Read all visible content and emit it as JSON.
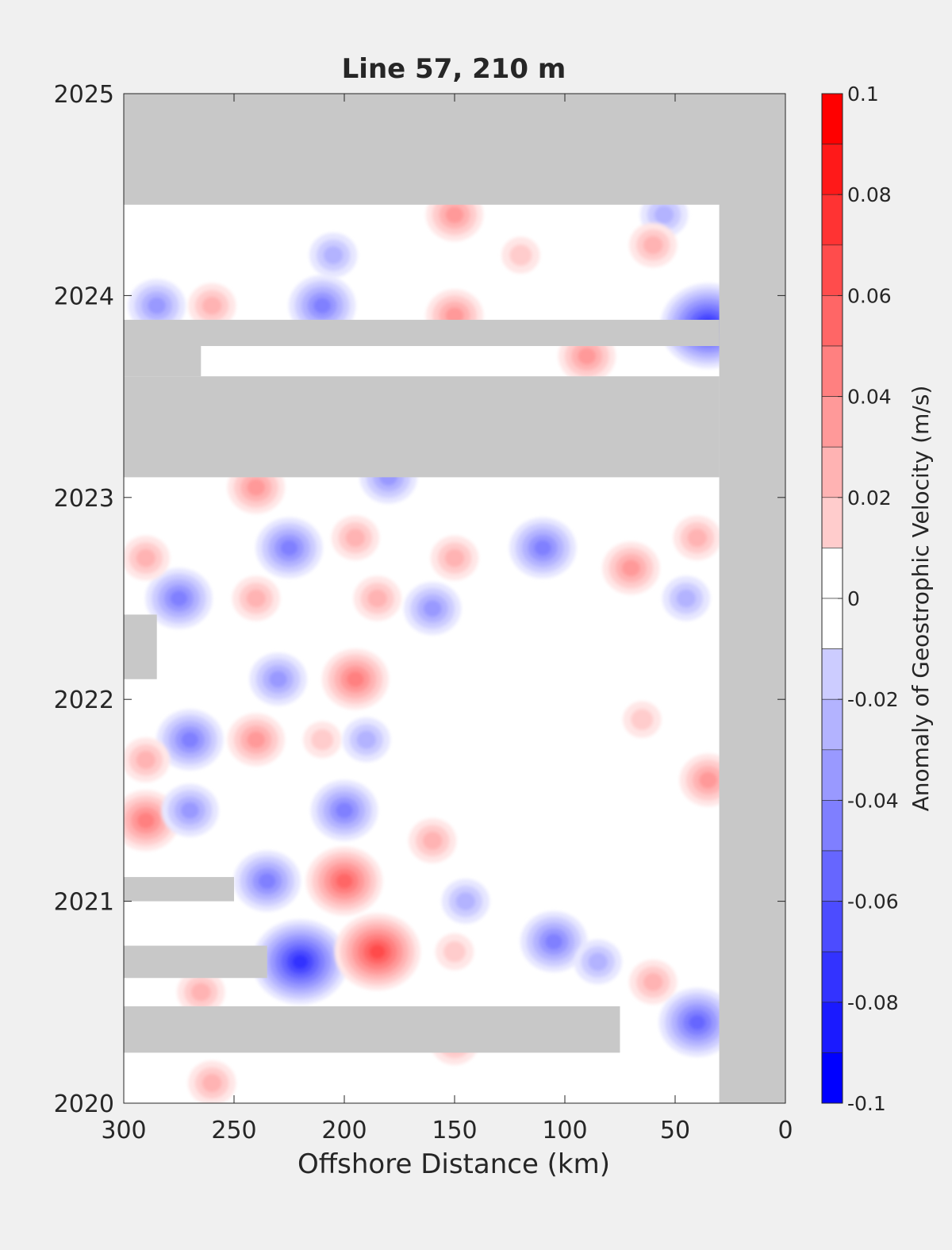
{
  "chart_data": {
    "type": "heatmap",
    "title": "Line 57, 210 m",
    "xlabel": "Offshore Distance (km)",
    "ylabel": "",
    "xlim": [
      300,
      0
    ],
    "ylim": [
      2020,
      2025
    ],
    "xticks": [
      "300",
      "250",
      "200",
      "150",
      "100",
      "50",
      "0"
    ],
    "yticks": [
      "2025",
      "2024",
      "2023",
      "2022",
      "2021",
      "2020"
    ],
    "colorbar": {
      "label": "Anomaly of Geostrophic Velocity (m/s)",
      "range": [
        -0.1,
        0.1
      ],
      "levels": 20,
      "tick_labels": [
        "0.1",
        "0.08",
        "0.06",
        "0.04",
        "0.02",
        "0",
        "-0.02",
        "-0.04",
        "-0.06",
        "-0.08",
        "-0.1"
      ],
      "colors": {
        "negative_max": "#0000ff",
        "zero": "#ffffff",
        "positive_max": "#ff0000",
        "missing": "#c8c8c8"
      }
    },
    "grid": false,
    "data_coverage": {
      "x_range": [
        300,
        30
      ],
      "y_range": [
        2020.05,
        2024.45
      ]
    },
    "missing_bands": [
      {
        "x": [
          300,
          0
        ],
        "y": [
          2024.45,
          2025.0
        ]
      },
      {
        "x": [
          30,
          0
        ],
        "y": [
          2020.0,
          2025.0
        ]
      },
      {
        "x": [
          300,
          30
        ],
        "y": [
          2023.1,
          2023.6
        ]
      },
      {
        "x": [
          300,
          30
        ],
        "y": [
          2023.75,
          2023.88
        ]
      },
      {
        "x": [
          300,
          265
        ],
        "y": [
          2023.6,
          2023.75
        ]
      },
      {
        "x": [
          300,
          285
        ],
        "y": [
          2022.1,
          2022.42
        ]
      },
      {
        "x": [
          300,
          250
        ],
        "y": [
          2021.0,
          2021.12
        ]
      },
      {
        "x": [
          300,
          235
        ],
        "y": [
          2020.62,
          2020.78
        ]
      },
      {
        "x": [
          300,
          75
        ],
        "y": [
          2020.25,
          2020.48
        ]
      }
    ],
    "anomalies": [
      {
        "x": 220,
        "y": 2020.7,
        "value": -0.075
      },
      {
        "x": 185,
        "y": 2020.75,
        "value": 0.07
      },
      {
        "x": 150,
        "y": 2020.75,
        "value": 0.02
      },
      {
        "x": 235,
        "y": 2021.1,
        "value": -0.05
      },
      {
        "x": 200,
        "y": 2021.1,
        "value": 0.055
      },
      {
        "x": 145,
        "y": 2021.0,
        "value": -0.03
      },
      {
        "x": 105,
        "y": 2020.8,
        "value": -0.045
      },
      {
        "x": 85,
        "y": 2020.7,
        "value": -0.025
      },
      {
        "x": 60,
        "y": 2020.6,
        "value": 0.025
      },
      {
        "x": 40,
        "y": 2020.4,
        "value": -0.06
      },
      {
        "x": 265,
        "y": 2020.55,
        "value": 0.03
      },
      {
        "x": 150,
        "y": 2020.3,
        "value": 0.03
      },
      {
        "x": 260,
        "y": 2020.1,
        "value": 0.03
      },
      {
        "x": 200,
        "y": 2021.45,
        "value": -0.05
      },
      {
        "x": 290,
        "y": 2021.4,
        "value": 0.045
      },
      {
        "x": 270,
        "y": 2021.45,
        "value": -0.035
      },
      {
        "x": 160,
        "y": 2021.3,
        "value": 0.025
      },
      {
        "x": 210,
        "y": 2021.8,
        "value": 0.02
      },
      {
        "x": 240,
        "y": 2021.8,
        "value": 0.035
      },
      {
        "x": 270,
        "y": 2021.8,
        "value": -0.045
      },
      {
        "x": 190,
        "y": 2021.8,
        "value": -0.03
      },
      {
        "x": 290,
        "y": 2021.7,
        "value": 0.03
      },
      {
        "x": 195,
        "y": 2022.1,
        "value": 0.045
      },
      {
        "x": 230,
        "y": 2022.1,
        "value": -0.035
      },
      {
        "x": 35,
        "y": 2021.6,
        "value": 0.035
      },
      {
        "x": 65,
        "y": 2021.9,
        "value": 0.02
      },
      {
        "x": 275,
        "y": 2022.5,
        "value": -0.045
      },
      {
        "x": 225,
        "y": 2022.75,
        "value": -0.045
      },
      {
        "x": 240,
        "y": 2022.5,
        "value": 0.03
      },
      {
        "x": 185,
        "y": 2022.5,
        "value": 0.03
      },
      {
        "x": 160,
        "y": 2022.45,
        "value": -0.04
      },
      {
        "x": 195,
        "y": 2022.8,
        "value": 0.025
      },
      {
        "x": 110,
        "y": 2022.75,
        "value": -0.045
      },
      {
        "x": 70,
        "y": 2022.65,
        "value": 0.035
      },
      {
        "x": 45,
        "y": 2022.5,
        "value": -0.03
      },
      {
        "x": 290,
        "y": 2022.7,
        "value": 0.025
      },
      {
        "x": 40,
        "y": 2022.8,
        "value": 0.025
      },
      {
        "x": 150,
        "y": 2022.7,
        "value": 0.025
      },
      {
        "x": 240,
        "y": 2023.05,
        "value": 0.04
      },
      {
        "x": 180,
        "y": 2023.1,
        "value": -0.04
      },
      {
        "x": 210,
        "y": 2023.95,
        "value": -0.05
      },
      {
        "x": 150,
        "y": 2023.9,
        "value": 0.04
      },
      {
        "x": 260,
        "y": 2023.95,
        "value": 0.03
      },
      {
        "x": 285,
        "y": 2023.95,
        "value": -0.035
      },
      {
        "x": 35,
        "y": 2023.85,
        "value": -0.075
      },
      {
        "x": 90,
        "y": 2023.7,
        "value": 0.035
      },
      {
        "x": 150,
        "y": 2024.4,
        "value": 0.035
      },
      {
        "x": 205,
        "y": 2024.2,
        "value": -0.025
      },
      {
        "x": 55,
        "y": 2024.4,
        "value": -0.03
      },
      {
        "x": 60,
        "y": 2024.25,
        "value": 0.025
      },
      {
        "x": 120,
        "y": 2024.2,
        "value": 0.02
      }
    ]
  }
}
